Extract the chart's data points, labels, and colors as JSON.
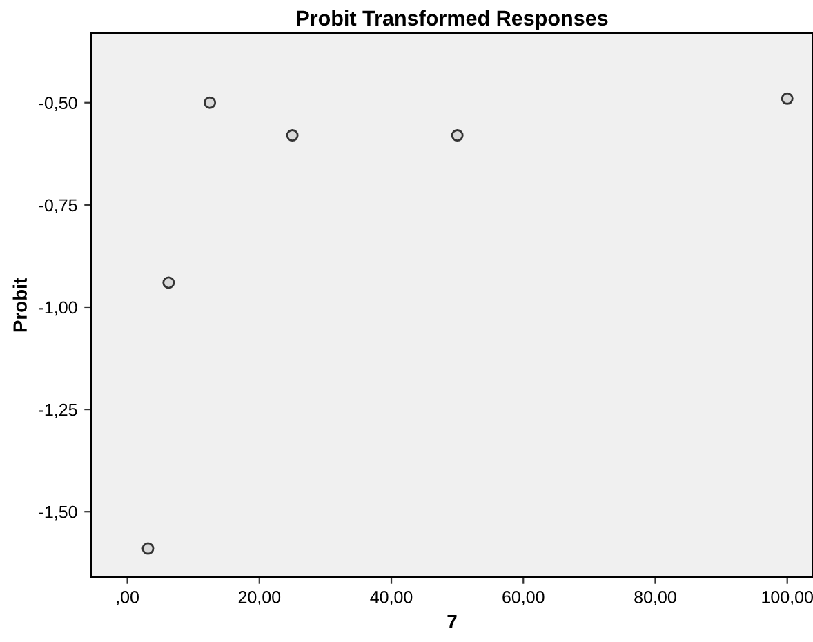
{
  "chart_data": {
    "type": "scatter",
    "title": "Probit Transformed Responses",
    "xlabel": "7",
    "ylabel": "Probit",
    "x": [
      3.125,
      6.25,
      12.5,
      25,
      50,
      100
    ],
    "series": [
      {
        "color": "#d9d9d9",
        "values": [
          -1.59,
          -0.94,
          -0.5,
          -0.58,
          -0.58,
          -0.49
        ]
      }
    ],
    "marker": "circle",
    "grid": false,
    "legend": false,
    "xlim": [
      -5.5,
      103.9
    ],
    "ylim": [
      -1.66,
      -0.33
    ],
    "xticks": [
      {
        "value": 0,
        "label": ",00"
      },
      {
        "value": 20,
        "label": "20,00"
      },
      {
        "value": 40,
        "label": "40,00"
      },
      {
        "value": 60,
        "label": "60,00"
      },
      {
        "value": 80,
        "label": "80,00"
      },
      {
        "value": 100,
        "label": "100,00"
      }
    ],
    "yticks": [
      {
        "value": -1.5,
        "label": "-1,50"
      },
      {
        "value": -1.25,
        "label": "-1,25"
      },
      {
        "value": -1.0,
        "label": "-1,00"
      },
      {
        "value": -0.75,
        "label": "-0,75"
      },
      {
        "value": -0.5,
        "label": "-0,50"
      }
    ]
  }
}
